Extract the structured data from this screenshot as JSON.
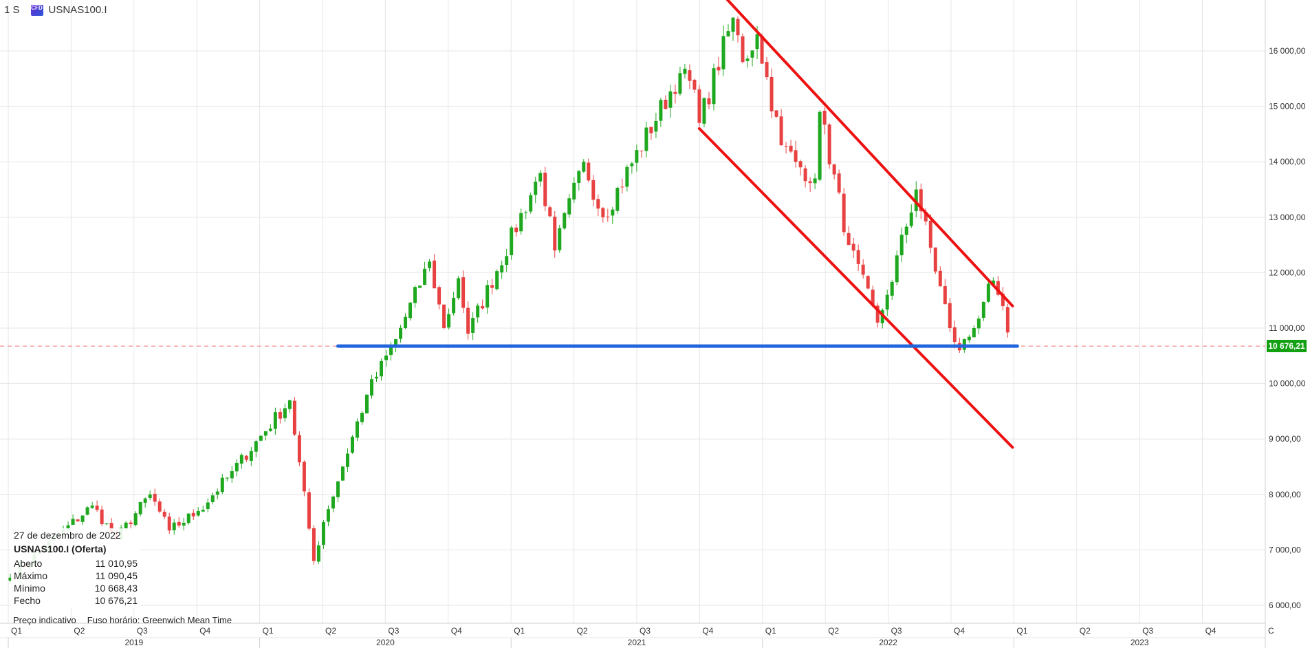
{
  "header": {
    "timeframe": "1 S",
    "badge": "CFD",
    "symbol": "USNAS100.I"
  },
  "info_panel": {
    "date": "27 de dezembro de 2022",
    "instrument": "USNAS100.I (Oferta)",
    "rows": [
      {
        "label": "Aberto",
        "value": "11 010,95"
      },
      {
        "label": "Máximo",
        "value": "11 090,45"
      },
      {
        "label": "Mínimo",
        "value": "10 668,43"
      },
      {
        "label": "Fecho",
        "value": "10 676,21"
      }
    ]
  },
  "footer": {
    "indicative": "Preço indicativo",
    "timezone_label": "Fuso horário",
    "timezone": "Greenwich Mean Time"
  },
  "last_price_label": "10 676,21",
  "colors": {
    "up": "#1fa81f",
    "down": "#e84141",
    "channel": "#ee1111",
    "support": "#2266dd",
    "last_price": "#13a013"
  },
  "chart_data": {
    "type": "candlestick",
    "ylim": [
      5750,
      16900
    ],
    "y_ticks": [
      {
        "value": 6000,
        "label": "6 000,00"
      },
      {
        "value": 7000,
        "label": "7 000,00"
      },
      {
        "value": 8000,
        "label": "8 000,00"
      },
      {
        "value": 9000,
        "label": "9 000,00"
      },
      {
        "value": 10000,
        "label": "10 000,00"
      },
      {
        "value": 11000,
        "label": "11 000,00"
      },
      {
        "value": 12000,
        "label": "12 000,00"
      },
      {
        "value": 13000,
        "label": "13 000,00"
      },
      {
        "value": 14000,
        "label": "14 000,00"
      },
      {
        "value": 15000,
        "label": "15 000,00"
      },
      {
        "value": 16000,
        "label": "16 000,00"
      }
    ],
    "quarter_labels": [
      "Q1",
      "Q2",
      "Q3",
      "Q4",
      "Q1",
      "Q2",
      "Q3",
      "Q4",
      "Q1",
      "Q2",
      "Q3",
      "Q4",
      "Q1",
      "Q2",
      "Q3",
      "Q4",
      "Q1",
      "Q2",
      "Q3",
      "Q4",
      "C"
    ],
    "year_labels": [
      "2019",
      "2020",
      "2021",
      "2022",
      "2023"
    ],
    "last_price": 10676.21,
    "support_level": 10676,
    "anchors": [
      [
        "2019-01-04",
        6500
      ],
      [
        "2019-05-03",
        7800
      ],
      [
        "2019-06-07",
        7200
      ],
      [
        "2019-07-26",
        8000
      ],
      [
        "2019-08-23",
        7350
      ],
      [
        "2019-10-04",
        7700
      ],
      [
        "2019-11-15",
        8300
      ],
      [
        "2020-02-14",
        9700
      ],
      [
        "2020-03-20",
        6800
      ],
      [
        "2020-04-03",
        7500
      ],
      [
        "2020-06-05",
        9800
      ],
      [
        "2020-07-17",
        10800
      ],
      [
        "2020-09-04",
        12200
      ],
      [
        "2020-09-25",
        11000
      ],
      [
        "2020-10-16",
        11900
      ],
      [
        "2020-10-30",
        10900
      ],
      [
        "2021-02-12",
        13800
      ],
      [
        "2021-03-05",
        12400
      ],
      [
        "2021-04-16",
        14000
      ],
      [
        "2021-05-14",
        13000
      ],
      [
        "2021-09-03",
        15600
      ],
      [
        "2021-09-24",
        15300
      ],
      [
        "2021-10-01",
        14700
      ],
      [
        "2021-11-19",
        16600
      ],
      [
        "2021-12-03",
        15800
      ],
      [
        "2021-12-24",
        16300
      ],
      [
        "2022-01-28",
        14300
      ],
      [
        "2022-02-25",
        13900
      ],
      [
        "2022-03-18",
        13700
      ],
      [
        "2022-03-25",
        14900
      ],
      [
        "2022-05-06",
        12500
      ],
      [
        "2022-06-17",
        11100
      ],
      [
        "2022-07-01",
        11600
      ],
      [
        "2022-08-12",
        13500
      ],
      [
        "2022-09-30",
        11000
      ],
      [
        "2022-10-14",
        10600
      ],
      [
        "2022-11-04",
        11000
      ],
      [
        "2022-11-25",
        11800
      ],
      [
        "2022-12-09",
        11600
      ],
      [
        "2022-12-27",
        10676
      ]
    ],
    "channel_upper": [
      [
        "2021-11-05",
        17000
      ],
      [
        "2022-12-30",
        11400
      ]
    ],
    "channel_lower": [
      [
        "2021-10-01",
        14600
      ],
      [
        "2022-12-30",
        8850
      ]
    ],
    "support_line": [
      [
        "2020-04-24",
        10676
      ],
      [
        "2023-01-06",
        10676
      ]
    ]
  }
}
